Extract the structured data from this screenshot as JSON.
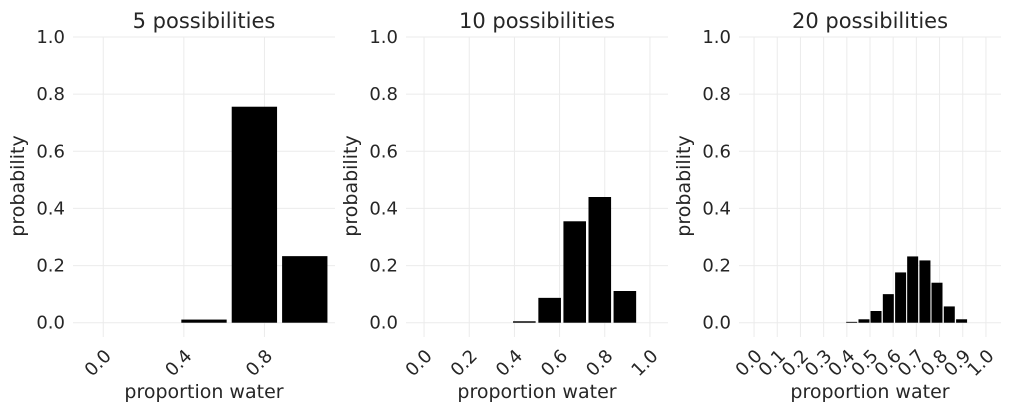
{
  "chart_data": [
    {
      "type": "bar",
      "title": "5 possibilities",
      "xlabel": "proportion water",
      "ylabel": "probability",
      "x": [
        0.0,
        0.25,
        0.5,
        0.75,
        1.0
      ],
      "values": [
        0.0,
        0.0,
        0.011,
        0.756,
        0.233
      ],
      "bar_width": 0.225,
      "xlim": [
        -0.15,
        1.15
      ],
      "ylim": [
        -0.05,
        1.0
      ],
      "xticks": [
        0.0,
        0.4,
        0.8
      ],
      "xtick_labels": [
        "0.0",
        "0.4",
        "0.8"
      ],
      "yticks": [
        0.0,
        0.2,
        0.4,
        0.6,
        0.8,
        1.0
      ],
      "ytick_labels": [
        "0.0",
        "0.2",
        "0.4",
        "0.6",
        "0.8",
        "1.0"
      ],
      "grid": true,
      "bar_color": "#000000"
    },
    {
      "type": "bar",
      "title": "10 possibilities",
      "xlabel": "proportion water",
      "ylabel": "probability",
      "x": [
        0.0,
        0.111,
        0.222,
        0.333,
        0.444,
        0.556,
        0.667,
        0.778,
        0.889,
        1.0
      ],
      "values": [
        0.0,
        0.0,
        0.0,
        0.0,
        0.005,
        0.087,
        0.355,
        0.44,
        0.111,
        0.0
      ],
      "bar_width": 0.1,
      "xlim": [
        -0.08,
        1.08
      ],
      "ylim": [
        -0.05,
        1.0
      ],
      "xticks": [
        0.0,
        0.2,
        0.4,
        0.6,
        0.8,
        1.0
      ],
      "xtick_labels": [
        "0.0",
        "0.2",
        "0.4",
        "0.6",
        "0.8",
        "1.0"
      ],
      "yticks": [
        0.0,
        0.2,
        0.4,
        0.6,
        0.8,
        1.0
      ],
      "ytick_labels": [
        "0.0",
        "0.2",
        "0.4",
        "0.6",
        "0.8",
        "1.0"
      ],
      "grid": true,
      "bar_color": "#000000"
    },
    {
      "type": "bar",
      "title": "20 possibilities",
      "xlabel": "proportion water",
      "ylabel": "probability",
      "x": [
        0.0,
        0.053,
        0.105,
        0.158,
        0.211,
        0.263,
        0.316,
        0.368,
        0.421,
        0.474,
        0.526,
        0.579,
        0.632,
        0.684,
        0.737,
        0.789,
        0.842,
        0.895,
        0.947,
        1.0
      ],
      "values": [
        0.0,
        0.0,
        0.0,
        0.0,
        0.0,
        0.0,
        0.0,
        0.0,
        0.003,
        0.012,
        0.041,
        0.1,
        0.176,
        0.232,
        0.218,
        0.14,
        0.057,
        0.012,
        0.0,
        0.0
      ],
      "bar_width": 0.0474,
      "xlim": [
        -0.065,
        1.065
      ],
      "ylim": [
        -0.05,
        1.0
      ],
      "xticks": [
        0.0,
        0.1,
        0.2,
        0.3,
        0.4,
        0.5,
        0.6,
        0.7,
        0.8,
        0.9,
        1.0
      ],
      "xtick_labels": [
        "0.0",
        "0.1",
        "0.2",
        "0.3",
        "0.4",
        "0.5",
        "0.6",
        "0.7",
        "0.8",
        "0.9",
        "1.0"
      ],
      "yticks": [
        0.0,
        0.2,
        0.4,
        0.6,
        0.8,
        1.0
      ],
      "ytick_labels": [
        "0.0",
        "0.2",
        "0.4",
        "0.6",
        "0.8",
        "1.0"
      ],
      "grid": true,
      "bar_color": "#000000"
    }
  ],
  "style": {
    "grid_color": "#ebebeb",
    "text_color": "#262626",
    "background": "#ffffff"
  }
}
